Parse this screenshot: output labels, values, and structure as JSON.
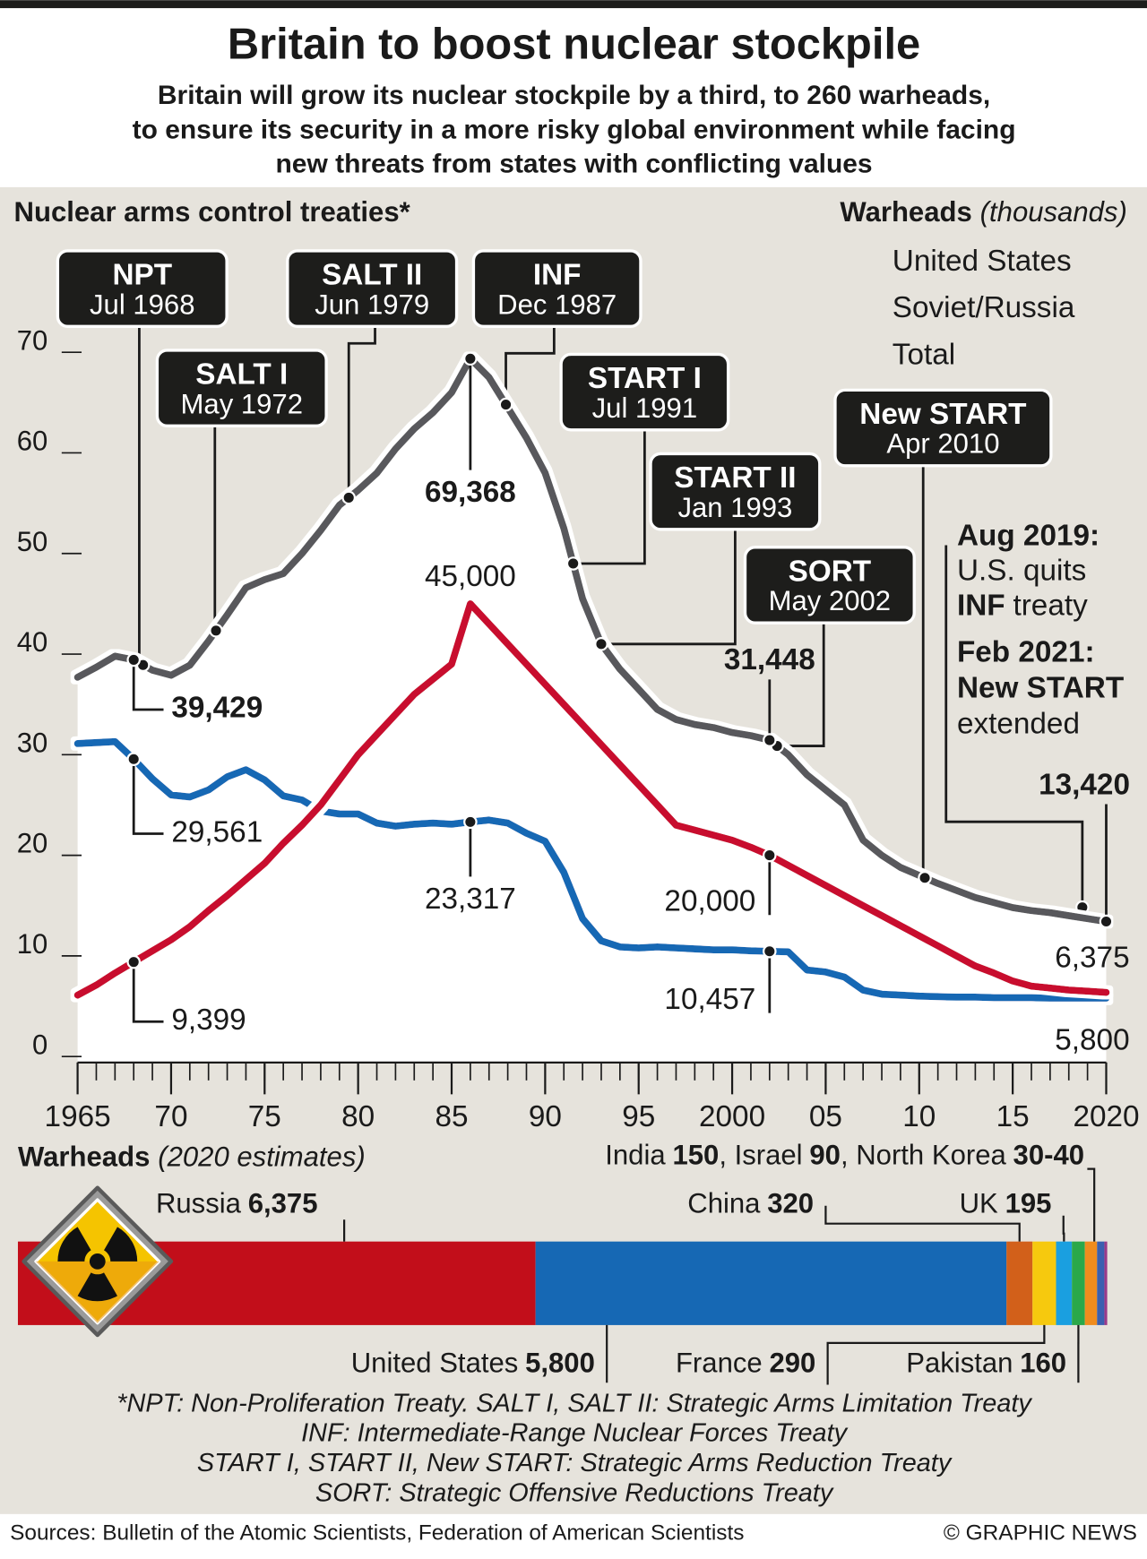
{
  "header": {
    "title": "Britain to boost nuclear stockpile",
    "subtitle": [
      "Britain will grow its nuclear stockpile by a third, to 260 warheads,",
      "to ensure its security in a more risky global environment while facing",
      "new threats from states with conflicting values"
    ]
  },
  "chart_data": [
    {
      "type": "line",
      "title": "Nuclear arms control treaties*",
      "legend_title": "Warheads",
      "legend_unit": "(thousands)",
      "x": [
        1965,
        1966,
        1967,
        1968,
        1969,
        1970,
        1971,
        1972,
        1973,
        1974,
        1975,
        1976,
        1977,
        1978,
        1979,
        1980,
        1981,
        1982,
        1983,
        1984,
        1985,
        1986,
        1987,
        1988,
        1989,
        1990,
        1991,
        1992,
        1993,
        1994,
        1995,
        1996,
        1997,
        1998,
        1999,
        2000,
        2001,
        2002,
        2003,
        2004,
        2005,
        2006,
        2007,
        2008,
        2009,
        2010,
        2011,
        2012,
        2013,
        2014,
        2015,
        2016,
        2017,
        2018,
        2019,
        2020
      ],
      "xlim": [
        1965,
        2020
      ],
      "xticks": [
        1965,
        {
          "value": 1970,
          "label": "70"
        },
        {
          "value": 1975,
          "label": "75"
        },
        {
          "value": 1980,
          "label": "80"
        },
        {
          "value": 1985,
          "label": "85"
        },
        {
          "value": 1990,
          "label": "90"
        },
        {
          "value": 1995,
          "label": "95"
        },
        2000,
        {
          "value": 2005,
          "label": "05"
        },
        {
          "value": 2010,
          "label": "10"
        },
        {
          "value": 2015,
          "label": "15"
        },
        2020
      ],
      "ylim": [
        0,
        70
      ],
      "yticks": [
        0,
        10,
        20,
        30,
        40,
        50,
        60,
        70
      ],
      "series": [
        {
          "name": "United States",
          "color": "#1668b4",
          "values": [
            31.1,
            31.2,
            31.3,
            29.561,
            27.6,
            26.0,
            25.8,
            26.5,
            27.8,
            28.5,
            27.5,
            25.9,
            25.5,
            24.4,
            24.1,
            24.1,
            23.2,
            22.9,
            23.1,
            23.2,
            23.1,
            23.317,
            23.5,
            23.2,
            22.2,
            21.4,
            18.3,
            13.7,
            11.5,
            10.9,
            10.8,
            10.9,
            10.8,
            10.7,
            10.6,
            10.6,
            10.5,
            10.457,
            10.4,
            8.6,
            8.4,
            7.9,
            6.6,
            6.2,
            6.1,
            6.0,
            5.95,
            5.9,
            5.9,
            5.85,
            5.85,
            5.85,
            5.8,
            5.8,
            5.8,
            5.8
          ],
          "value_labels": [
            null,
            null,
            null,
            "29,561",
            null,
            null,
            null,
            null,
            null,
            null,
            null,
            null,
            null,
            null,
            null,
            null,
            null,
            null,
            null,
            null,
            null,
            "23,317",
            null,
            null,
            null,
            null,
            null,
            null,
            null,
            null,
            null,
            null,
            null,
            null,
            null,
            null,
            null,
            "10,457",
            null,
            null,
            null,
            null,
            null,
            null,
            null,
            null,
            null,
            null,
            null,
            null,
            null,
            null,
            null,
            null,
            null,
            "5,800"
          ]
        },
        {
          "name": "Soviet/Russia",
          "color": "#c8102e",
          "values": [
            6.1,
            7.1,
            8.3,
            9.399,
            10.5,
            11.6,
            12.9,
            14.5,
            16.0,
            17.6,
            19.2,
            21.2,
            23.0,
            25.0,
            27.5,
            30.0,
            32.0,
            34.0,
            36.0,
            37.5,
            39.0,
            45.0,
            43.0,
            41.0,
            39.0,
            37.0,
            35.0,
            33.0,
            31.0,
            29.0,
            27.0,
            25.0,
            23.0,
            22.5,
            22.0,
            21.5,
            20.8,
            20.0,
            19.0,
            18.0,
            17.0,
            16.0,
            15.0,
            14.0,
            13.0,
            12.0,
            11.0,
            10.0,
            9.0,
            8.3,
            7.5,
            7.0,
            6.8,
            6.6,
            6.5,
            6.375
          ],
          "value_labels": [
            null,
            null,
            null,
            "9,399",
            null,
            null,
            null,
            null,
            null,
            null,
            null,
            null,
            null,
            null,
            null,
            null,
            null,
            null,
            null,
            null,
            null,
            "45,000",
            null,
            null,
            null,
            null,
            null,
            null,
            null,
            null,
            null,
            null,
            null,
            null,
            null,
            null,
            null,
            "20,000",
            null,
            null,
            null,
            null,
            null,
            null,
            null,
            null,
            null,
            null,
            null,
            null,
            null,
            null,
            null,
            null,
            null,
            "6,375"
          ]
        },
        {
          "name": "Total",
          "color": "#58595b",
          "values": [
            37.7,
            38.7,
            39.8,
            39.429,
            38.4,
            37.9,
            38.9,
            41.3,
            43.9,
            46.6,
            47.4,
            48.0,
            50.0,
            52.3,
            54.8,
            56.3,
            58.0,
            60.4,
            62.4,
            64.0,
            66.0,
            69.368,
            67.5,
            64.5,
            61.5,
            58.0,
            52.5,
            45.5,
            41.0,
            38.5,
            36.5,
            34.5,
            33.5,
            33.0,
            32.7,
            32.2,
            31.9,
            31.448,
            30.0,
            28.0,
            26.5,
            25.0,
            21.5,
            20.0,
            18.8,
            18.0,
            17.2,
            16.5,
            15.8,
            15.3,
            14.8,
            14.5,
            14.3,
            14.0,
            13.7,
            13.42
          ],
          "value_labels": [
            null,
            null,
            null,
            "39,429",
            null,
            null,
            null,
            null,
            null,
            null,
            null,
            null,
            null,
            null,
            null,
            null,
            null,
            null,
            null,
            null,
            null,
            "69,368",
            null,
            null,
            null,
            null,
            null,
            null,
            null,
            null,
            null,
            null,
            null,
            null,
            null,
            null,
            null,
            "31,448",
            null,
            null,
            null,
            null,
            null,
            null,
            null,
            null,
            null,
            null,
            null,
            null,
            null,
            null,
            null,
            null,
            null,
            "13,420"
          ]
        }
      ],
      "treaties": [
        {
          "name": "NPT",
          "date": "Jul 1968",
          "x": 1968.5
        },
        {
          "name": "SALT I",
          "date": "May 1972",
          "x": 1972.4
        },
        {
          "name": "SALT II",
          "date": "Jun 1979",
          "x": 1979.5
        },
        {
          "name": "INF",
          "date": "Dec 1987",
          "x": 1987.9
        },
        {
          "name": "START I",
          "date": "Jul 1991",
          "x": 1991.5
        },
        {
          "name": "START II",
          "date": "Jan  1993",
          "x": 1993.0
        },
        {
          "name": "SORT",
          "date": "May 2002",
          "x": 2002.4
        },
        {
          "name": "New START",
          "date": "Apr 2010",
          "x": 2010.3
        }
      ],
      "events": [
        {
          "date": "Aug 2019:",
          "text": "U.S. quits",
          "bold": "INF",
          "tail": "treaty"
        },
        {
          "date": "Feb 2021:",
          "bold": "New START",
          "tail": "extended"
        }
      ]
    },
    {
      "type": "stacked_bar",
      "title": "Warheads",
      "subtitle": "(2020 estimates)",
      "separator": ", ",
      "categories": [
        "Russia",
        "United States",
        "China",
        "France",
        "UK",
        "Pakistan",
        "India",
        "Israel",
        "North Korea"
      ],
      "values": [
        6375,
        5800,
        320,
        290,
        195,
        160,
        150,
        90,
        35
      ],
      "value_labels": [
        "6,375",
        "5,800",
        "320",
        "290",
        "195",
        "160",
        "150",
        "90",
        "30-40"
      ],
      "colors": [
        "#c20e1a",
        "#1668b4",
        "#d2601a",
        "#f6c90e",
        "#1a9fe0",
        "#2aa84a",
        "#f08c1e",
        "#3b5fb0",
        "#9a3a8a"
      ]
    }
  ],
  "footnotes": [
    "*NPT: Non-Proliferation Treaty. SALT I, SALT II: Strategic Arms Limitation Treaty",
    "INF: Intermediate-Range Nuclear Forces Treaty",
    "START I, START II, New START: Strategic Arms Reduction Treaty",
    "SORT: Strategic Offensive Reductions Treaty"
  ],
  "source": "Sources: Bulletin of the Atomic Scientists, Federation of American Scientists",
  "credit": "© GRAPHIC NEWS"
}
